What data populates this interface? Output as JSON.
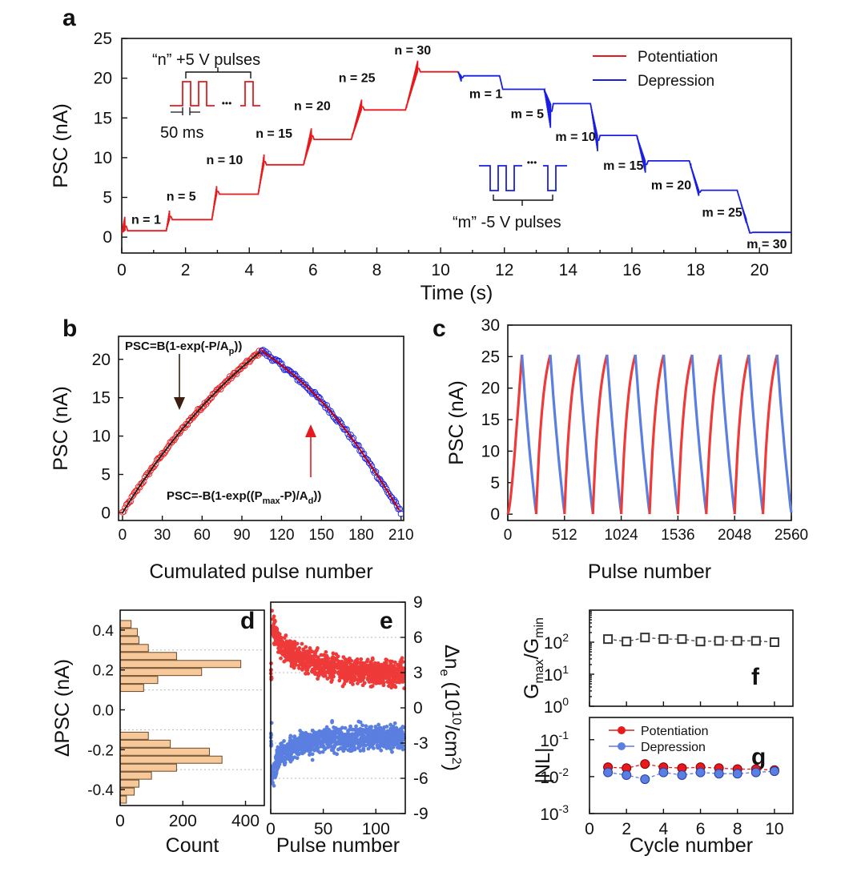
{
  "colors": {
    "potentiation": "#e8191c",
    "depression": "#1a1ee0",
    "pot_c": "#ef3a3a",
    "dep_c": "#5a7fe0",
    "hist": "#f6c89a",
    "hist_edge": "#6b4a2a"
  },
  "chart_data": [
    {
      "panel": "a",
      "type": "line",
      "xlabel": "Time (s)",
      "ylabel": "PSC (nA)",
      "xlim": [
        0,
        21
      ],
      "ylim": [
        -2,
        25
      ],
      "xticks": [
        0,
        2,
        4,
        6,
        8,
        10,
        12,
        14,
        16,
        18,
        20
      ],
      "yticks": [
        0,
        5,
        10,
        15,
        20,
        25
      ],
      "legend": {
        "position": "top-right",
        "entries": [
          "Potentiation",
          "Depression"
        ]
      },
      "series": [
        {
          "name": "Potentiation",
          "stages": [
            {
              "t0": 0.0,
              "t1": 0.1,
              "from": 0.5,
              "to": 2.7,
              "base_end": 0.8
            },
            {
              "t0": 1.4,
              "t1": 1.5,
              "from": 0.9,
              "to": 3.5,
              "base_end": 2.2
            },
            {
              "t0": 2.83,
              "t1": 2.98,
              "from": 2.3,
              "to": 6.6,
              "base_end": 5.4
            },
            {
              "t0": 4.28,
              "t1": 4.46,
              "from": 5.4,
              "to": 10.4,
              "base_end": 9.1
            },
            {
              "t0": 5.7,
              "t1": 5.95,
              "from": 9.1,
              "to": 13.8,
              "base_end": 12.3
            },
            {
              "t0": 7.2,
              "t1": 7.52,
              "from": 12.3,
              "to": 17.3,
              "base_end": 16.0
            },
            {
              "t0": 8.9,
              "t1": 9.28,
              "from": 16.0,
              "to": 22.2,
              "base_end": 20.8
            }
          ],
          "end_t": 10.55
        },
        {
          "name": "Depression",
          "start_t": 10.55,
          "start_v": 20.8,
          "stages": [
            {
              "t0": 10.55,
              "t1": 10.65,
              "from": 20.8,
              "to": 19.5,
              "base_end": 20.3
            },
            {
              "t0": 11.85,
              "t1": 11.95,
              "from": 20.3,
              "to": 18.6,
              "base_end": 18.6
            },
            {
              "t0": 13.25,
              "t1": 13.45,
              "from": 18.6,
              "to": 13.6,
              "base_end": 16.8
            },
            {
              "t0": 14.7,
              "t1": 14.92,
              "from": 16.8,
              "to": 10.8,
              "base_end": 12.8
            },
            {
              "t0": 16.15,
              "t1": 16.42,
              "from": 12.8,
              "to": 8.1,
              "base_end": 9.6
            },
            {
              "t0": 17.8,
              "t1": 18.1,
              "from": 9.6,
              "to": 5.1,
              "base_end": 5.9
            },
            {
              "t0": 19.3,
              "t1": 19.7,
              "from": 5.9,
              "to": 0.4,
              "base_end": 0.6
            }
          ],
          "end_t": 21.0
        }
      ],
      "annotations": [
        {
          "text": "n = 1",
          "x": 0.3,
          "y": 1.7
        },
        {
          "text": "n = 5",
          "x": 1.4,
          "y": 4.6
        },
        {
          "text": "n = 10",
          "x": 2.65,
          "y": 9.2
        },
        {
          "text": "n = 15",
          "x": 4.2,
          "y": 12.5
        },
        {
          "text": "n = 20",
          "x": 5.4,
          "y": 16.0
        },
        {
          "text": "n = 25",
          "x": 6.8,
          "y": 19.5
        },
        {
          "text": "n = 30",
          "x": 8.55,
          "y": 23.0
        },
        {
          "text": "m = 1",
          "x": 10.9,
          "y": 17.5
        },
        {
          "text": "m = 5",
          "x": 12.2,
          "y": 15.0
        },
        {
          "text": "m = 10",
          "x": 13.6,
          "y": 12.1
        },
        {
          "text": "m = 15",
          "x": 15.1,
          "y": 8.5
        },
        {
          "text": "m = 20",
          "x": 16.6,
          "y": 6.0
        },
        {
          "text": "m = 25",
          "x": 18.2,
          "y": 2.6
        },
        {
          "text": "m = 30",
          "x": 19.6,
          "y": -1.4
        }
      ],
      "inset_labels": {
        "pot": "“n” +5 V pulses",
        "width": "50 ms",
        "dep": "“m” -5 V pulses",
        "dots": "•••"
      }
    },
    {
      "panel": "b",
      "type": "scatter",
      "xlabel": "Cumulated pulse number",
      "ylabel": "PSC (nA)",
      "xlim": [
        -3,
        212
      ],
      "ylim": [
        -1,
        23
      ],
      "xticks": [
        0,
        30,
        60,
        90,
        120,
        150,
        180,
        210
      ],
      "yticks": [
        0,
        5,
        10,
        15,
        20
      ],
      "pot_fit": {
        "B": 42,
        "A": 150,
        "pmax": 105
      },
      "dep_fit": {
        "B": 42,
        "A": 150,
        "pmax": 105,
        "ptot": 210
      },
      "annotations": {
        "pot_eq": "PSC=B(1-exp(-P/A",
        "pot_sub": "p",
        "pot_end": "))",
        "dep_eq": "PSC=-B(1-exp((P",
        "dep_sub1": "max",
        "dep_mid": "-P)/A",
        "dep_sub2": "d",
        "dep_end": "))"
      }
    },
    {
      "panel": "c",
      "type": "line",
      "xlabel": "Pulse number",
      "ylabel": "PSC (nA)",
      "xlim": [
        0,
        2560
      ],
      "ylim": [
        -1,
        30
      ],
      "xticks": [
        0,
        512,
        1024,
        1536,
        2048,
        2560
      ],
      "yticks": [
        0,
        5,
        10,
        15,
        20,
        25,
        30
      ],
      "cycles": 10,
      "cycle_length": 256,
      "peak": 25.3
    },
    {
      "panel": "d",
      "type": "bar",
      "xlabel": "Count",
      "ylabel": "ΔPSC (nA)",
      "xlim": [
        0,
        460
      ],
      "ylim": [
        -0.48,
        0.5
      ],
      "xticks": [
        0,
        200,
        400
      ],
      "yticks": [
        -0.4,
        -0.2,
        0.0,
        0.2,
        0.4
      ],
      "bins": [
        {
          "y": 0.43,
          "count": 35
        },
        {
          "y": 0.39,
          "count": 55
        },
        {
          "y": 0.35,
          "count": 60
        },
        {
          "y": 0.31,
          "count": 90
        },
        {
          "y": 0.27,
          "count": 180
        },
        {
          "y": 0.23,
          "count": 385
        },
        {
          "y": 0.19,
          "count": 260
        },
        {
          "y": 0.15,
          "count": 120
        },
        {
          "y": 0.11,
          "count": 75
        },
        {
          "y": -0.13,
          "count": 90
        },
        {
          "y": -0.17,
          "count": 160
        },
        {
          "y": -0.21,
          "count": 285
        },
        {
          "y": -0.25,
          "count": 325
        },
        {
          "y": -0.29,
          "count": 180
        },
        {
          "y": -0.33,
          "count": 100
        },
        {
          "y": -0.37,
          "count": 60
        },
        {
          "y": -0.41,
          "count": 45
        },
        {
          "y": -0.45,
          "count": 20
        }
      ]
    },
    {
      "panel": "e",
      "type": "scatter",
      "xlabel": "Pulse number",
      "ylabel": "Δn",
      "ylabel_sub": "e",
      "ylabel_rest": " (10",
      "ylabel_sup": "10",
      "ylabel_end": "/cm",
      "ylabel_sup2": "2",
      "ylabel_close": ")",
      "xlim": [
        0,
        128
      ],
      "ylim": [
        -9,
        9
      ],
      "xticks": [
        0,
        50,
        100
      ],
      "yticks": [
        -9,
        -6,
        -3,
        0,
        3,
        6,
        9
      ],
      "red_points": [
        [
          1,
          7.2
        ],
        [
          2,
          6.8
        ],
        [
          5,
          6.1
        ],
        [
          8,
          5.6
        ],
        [
          12,
          5.2
        ],
        [
          20,
          4.6
        ],
        [
          35,
          4.0
        ],
        [
          50,
          3.6
        ],
        [
          70,
          3.3
        ],
        [
          90,
          3.1
        ],
        [
          110,
          3.0
        ],
        [
          127,
          2.9
        ]
      ],
      "blue_points": [
        [
          1,
          -6.0
        ],
        [
          2,
          -5.6
        ],
        [
          5,
          -4.8
        ],
        [
          8,
          -4.2
        ],
        [
          12,
          -3.8
        ],
        [
          20,
          -3.4
        ],
        [
          35,
          -3.0
        ],
        [
          50,
          -2.7
        ],
        [
          70,
          -2.6
        ],
        [
          90,
          -2.5
        ],
        [
          110,
          -2.5
        ],
        [
          127,
          -2.4
        ]
      ]
    },
    {
      "panel": "f",
      "type": "scatter",
      "ylabel": "G",
      "ylabel_sub1": "max",
      "ylabel_mid": "/G",
      "ylabel_sub2": "min",
      "ylog": true,
      "ylim": [
        1,
        1000
      ],
      "yticks": [
        {
          "base": "10",
          "exp": "0"
        },
        {
          "base": "10",
          "exp": "1"
        },
        {
          "base": "10",
          "exp": "2"
        }
      ],
      "x": [
        1,
        2,
        3,
        4,
        5,
        6,
        7,
        8,
        9,
        10
      ],
      "values": [
        125,
        105,
        140,
        125,
        125,
        105,
        110,
        110,
        110,
        100
      ]
    },
    {
      "panel": "g",
      "type": "line",
      "xlabel": "Cycle number",
      "ylabel": "|NL|",
      "ylog": true,
      "ylim": [
        0.001,
        0.4
      ],
      "xlim": [
        0,
        11
      ],
      "xticks": [
        0,
        2,
        4,
        6,
        8,
        10
      ],
      "yticks": [
        {
          "base": "10",
          "exp": "-3"
        },
        {
          "base": "10",
          "exp": "-2"
        },
        {
          "base": "10",
          "exp": "-1"
        }
      ],
      "legend": {
        "position": "top-left",
        "entries": [
          "Potentiation",
          "Depression"
        ]
      },
      "x": [
        1,
        2,
        3,
        4,
        5,
        6,
        7,
        8,
        9,
        10
      ],
      "series": [
        {
          "name": "Potentiation",
          "values": [
            0.018,
            0.017,
            0.022,
            0.018,
            0.017,
            0.018,
            0.017,
            0.016,
            0.016,
            0.015
          ]
        },
        {
          "name": "Depression",
          "values": [
            0.013,
            0.011,
            0.0085,
            0.013,
            0.011,
            0.013,
            0.012,
            0.012,
            0.013,
            0.014
          ]
        }
      ]
    }
  ],
  "labels": {
    "a": "a",
    "b": "b",
    "c": "c",
    "d": "d",
    "e": "e",
    "f": "f",
    "g": "g"
  }
}
